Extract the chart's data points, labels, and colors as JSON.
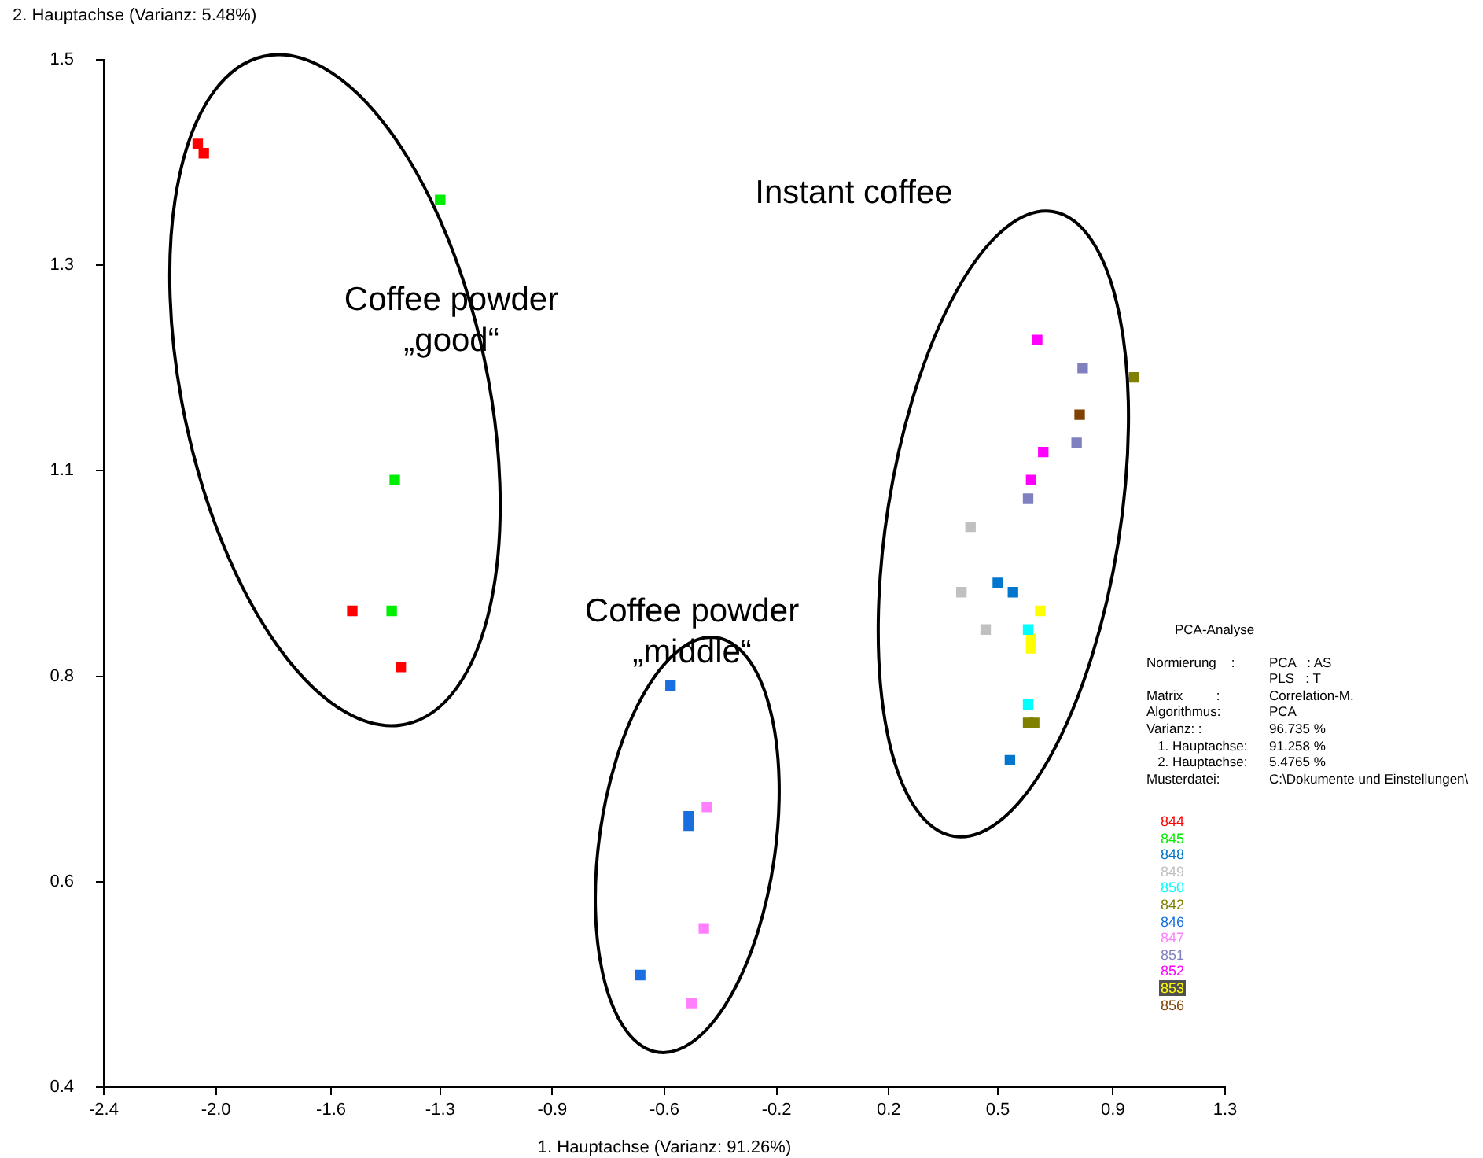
{
  "chart_data": {
    "type": "scatter",
    "xlabel": "1. Hauptachse (Varianz: 91.26%)",
    "ylabel": "2. Hauptachse (Varianz: 5.48%)",
    "xlim": [
      -2.4,
      1.3
    ],
    "xticks": [
      {
        "value": -2.4,
        "label": "-2.4"
      },
      {
        "value": -2.03,
        "label": "-2.0"
      },
      {
        "value": -1.65,
        "label": "-1.6"
      },
      {
        "value": -1.29,
        "label": "-1.3"
      },
      {
        "value": -0.92,
        "label": "-0.9"
      },
      {
        "value": -0.55,
        "label": "-0.6"
      },
      {
        "value": -0.18,
        "label": "-0.2"
      },
      {
        "value": 0.19,
        "label": "0.2"
      },
      {
        "value": 0.55,
        "label": "0.5"
      },
      {
        "value": 0.93,
        "label": "0.9"
      },
      {
        "value": 1.3,
        "label": "1.3"
      }
    ],
    "ylim": [
      0.4,
      1.5
    ],
    "yticks": [
      {
        "value": 0.4,
        "label": "0.4"
      },
      {
        "value": 0.62,
        "label": "0.6"
      },
      {
        "value": 0.84,
        "label": "0.8"
      },
      {
        "value": 1.06,
        "label": "1.1"
      },
      {
        "value": 1.28,
        "label": "1.3"
      },
      {
        "value": 1.5,
        "label": "1.5"
      }
    ],
    "grid": false,
    "legend": "right",
    "marker": "square",
    "series": [
      {
        "name": "844",
        "color": "#ff0000",
        "x": [
          -2.09,
          -2.07,
          -1.58,
          -1.42
        ],
        "values": [
          1.41,
          1.4,
          0.91,
          0.85
        ]
      },
      {
        "name": "845",
        "color": "#00ee00",
        "x": [
          -1.29,
          -1.44,
          -1.45
        ],
        "values": [
          1.35,
          1.05,
          0.91
        ]
      },
      {
        "name": "848",
        "color": "#0077cc",
        "x": [
          0.55,
          0.6,
          0.59
        ],
        "values": [
          0.94,
          0.93,
          0.75
        ]
      },
      {
        "name": "849",
        "color": "#c0c0c0",
        "x": [
          0.46,
          0.43,
          0.51
        ],
        "values": [
          1.0,
          0.93,
          0.89
        ]
      },
      {
        "name": "850",
        "color": "#00ffff",
        "x": [
          0.65,
          0.65
        ],
        "values": [
          0.89,
          0.81
        ]
      },
      {
        "name": "842",
        "color": "#808000",
        "x": [
          1.0,
          0.65,
          0.67
        ],
        "values": [
          1.16,
          0.79,
          0.79
        ]
      },
      {
        "name": "846",
        "color": "#1a6fe0",
        "x": [
          -0.53,
          -0.47,
          -0.47,
          -0.63
        ],
        "values": [
          0.83,
          0.69,
          0.68,
          0.52
        ]
      },
      {
        "name": "847",
        "color": "#ff80ff",
        "x": [
          -0.41,
          -0.42,
          -0.46
        ],
        "values": [
          0.7,
          0.57,
          0.49
        ]
      },
      {
        "name": "851",
        "color": "#8080c0",
        "x": [
          0.83,
          0.81,
          0.65
        ],
        "values": [
          1.17,
          1.09,
          1.03
        ]
      },
      {
        "name": "852",
        "color": "#ff00ff",
        "x": [
          0.68,
          0.7,
          0.66
        ],
        "values": [
          1.2,
          1.08,
          1.05
        ]
      },
      {
        "name": "853",
        "color": "#ffff00",
        "x": [
          0.69,
          0.66,
          0.66
        ],
        "values": [
          0.91,
          0.88,
          0.87
        ]
      },
      {
        "name": "856",
        "color": "#804000",
        "x": [
          0.82
        ],
        "values": [
          1.12
        ]
      }
    ],
    "annotations": [
      "Instant coffee",
      "Coffee powder\n„good“",
      "Coffee powder\n„middle“",
      "PCA-Analyse",
      "Normierung    :\tPCA   : AS",
      "\tPLS   : T",
      "Matrix         :\tCorrelation-M.",
      "Algorithmus:\tPCA",
      "Varianz: :\t96.735 %",
      "   1. Hauptachse:\t91.258 %",
      "   2. Hauptachse:\t5.4765 %",
      "Musterdatei:\tC:\\Dokumente und Einstellungen\\"
    ]
  }
}
